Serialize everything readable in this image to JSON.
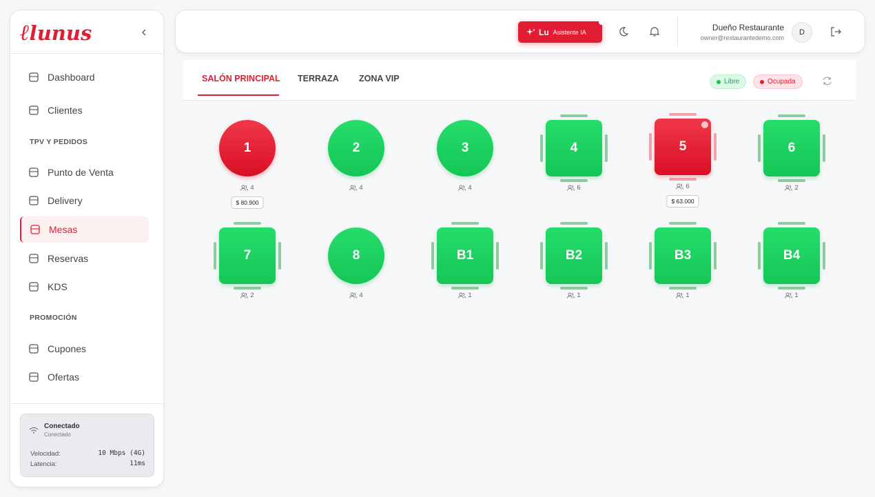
{
  "sidebar": {
    "logo": "lunus",
    "nav": [
      {
        "label": "Dashboard"
      },
      {
        "label": "Clientes"
      },
      {
        "section": "TPV Y PEDIDOS"
      },
      {
        "label": "Punto de Venta"
      },
      {
        "label": "Delivery"
      },
      {
        "label": "Mesas",
        "active": true
      },
      {
        "label": "Reservas"
      },
      {
        "label": "KDS"
      },
      {
        "section": "PROMOCIÓN"
      },
      {
        "label": "Cupones"
      },
      {
        "label": "Ofertas"
      }
    ],
    "connection": {
      "title": "Conectado",
      "subtitle": "Conectado",
      "rows": [
        [
          "Velocidad:",
          "10 Mbps (4G)"
        ],
        [
          "Latencia:",
          "11ms"
        ]
      ]
    }
  },
  "header": {
    "assistant": {
      "name": "Lu",
      "label": "Asistente IA"
    },
    "user": {
      "name": "Dueño Restaurante",
      "email": "owner@restaurantedemo.com",
      "initial": "D"
    }
  },
  "tabs": {
    "items": [
      "SALÓN PRINCIPAL",
      "TERRAZA",
      "ZONA VIP"
    ],
    "active": 0
  },
  "legend": [
    {
      "label": "Libre",
      "status": "free"
    },
    {
      "label": "Ocupada",
      "status": "busy"
    }
  ],
  "tables": [
    {
      "label": "1",
      "shape": "round",
      "status": "busy",
      "seats": 4,
      "total": "$ 80.900"
    },
    {
      "label": "2",
      "shape": "round",
      "status": "free",
      "seats": 4
    },
    {
      "label": "3",
      "shape": "round",
      "status": "free",
      "seats": 4
    },
    {
      "label": "4",
      "shape": "square",
      "status": "free",
      "seats": 6
    },
    {
      "label": "5",
      "shape": "square",
      "status": "busy",
      "seats": 6,
      "total": "$ 63.000"
    },
    {
      "label": "6",
      "shape": "square",
      "status": "free",
      "seats": 2
    },
    {
      "label": "7",
      "shape": "square",
      "status": "free",
      "seats": 2
    },
    {
      "label": "8",
      "shape": "round",
      "status": "free",
      "seats": 4
    },
    {
      "label": "B1",
      "shape": "square",
      "status": "free",
      "seats": 1
    },
    {
      "label": "B2",
      "shape": "square",
      "status": "free",
      "seats": 1
    },
    {
      "label": "B3",
      "shape": "square",
      "status": "free",
      "seats": 1
    },
    {
      "label": "B4",
      "shape": "square",
      "status": "free",
      "seats": 1
    }
  ]
}
